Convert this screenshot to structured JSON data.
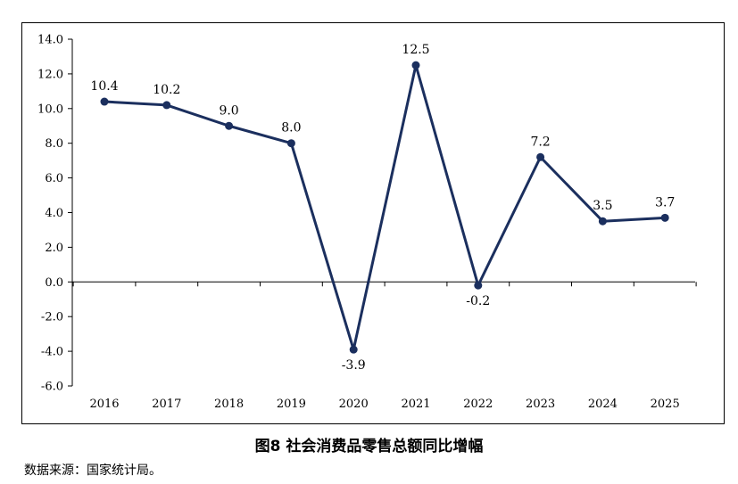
{
  "chart_data": {
    "type": "line",
    "x": [
      "2016",
      "2017",
      "2018",
      "2019",
      "2020",
      "2021",
      "2022",
      "2023",
      "2024",
      "2025"
    ],
    "values": [
      10.4,
      10.2,
      9.0,
      8.0,
      -3.9,
      12.5,
      -0.2,
      7.2,
      3.5,
      3.7
    ],
    "data_labels": [
      "10.4",
      "10.2",
      "9.0",
      "8.0",
      "-3.9",
      "12.5",
      "-0.2",
      "7.2",
      "3.5",
      "3.7"
    ],
    "ylim": [
      -6.0,
      14.0
    ],
    "y_ticks": [
      "14.0",
      "12.0",
      "10.0",
      "8.0",
      "6.0",
      "4.0",
      "2.0",
      "0.0",
      "-2.0",
      "-4.0",
      "-6.0"
    ],
    "y_tick_values": [
      14,
      12,
      10,
      8,
      6,
      4,
      2,
      0,
      -2,
      -4,
      -6
    ],
    "grid": false,
    "legend": "none",
    "line_color": "#1b2f5e",
    "title": "",
    "xlabel": "",
    "ylabel": ""
  },
  "caption": "图8  社会消费品零售总额同比增幅",
  "source_note": "数据来源：国家统计局。"
}
